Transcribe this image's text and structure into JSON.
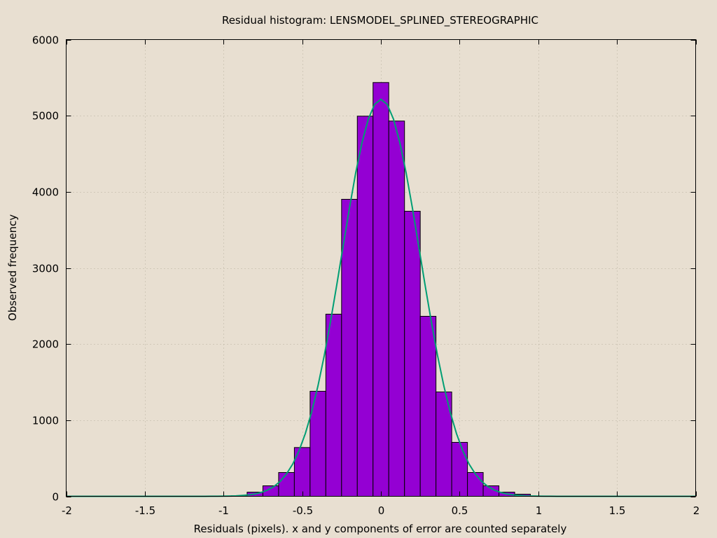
{
  "chart_data": {
    "type": "bar",
    "title": "Residual histogram: LENSMODEL_SPLINED_STEREOGRAPHIC",
    "xlabel": "Residuals (pixels). x and y components of error are counted separately",
    "ylabel": "Observed frequency",
    "xlim": [
      -2,
      2
    ],
    "ylim": [
      0,
      6000
    ],
    "xticks": [
      "-2",
      "-1.5",
      "-1",
      "-0.5",
      "0",
      "0.5",
      "1",
      "1.5",
      "2"
    ],
    "xtick_values": [
      -2,
      -1.5,
      -1,
      -0.5,
      0,
      0.5,
      1,
      1.5,
      2
    ],
    "yticks": [
      "0",
      "1000",
      "2000",
      "3000",
      "4000",
      "5000",
      "6000"
    ],
    "ytick_values": [
      0,
      1000,
      2000,
      3000,
      4000,
      5000,
      6000
    ],
    "grid": true,
    "bin_width": 0.1,
    "x": [
      -0.9,
      -0.8,
      -0.7,
      -0.6,
      -0.5,
      -0.4,
      -0.3,
      -0.2,
      -0.1,
      0.0,
      0.1,
      0.2,
      0.3,
      0.4,
      0.5,
      0.6,
      0.7,
      0.8,
      0.9
    ],
    "values": [
      8,
      55,
      138,
      313,
      641,
      1380,
      2393,
      3902,
      4994,
      5436,
      4930,
      3745,
      2365,
      1371,
      709,
      313,
      138,
      55,
      28
    ],
    "curve": {
      "type": "gaussian",
      "mean": 0.0,
      "sigma": 0.25,
      "peak": 5215
    },
    "colors": {
      "bars": "#9400d3",
      "curve": "#009e73",
      "background": "#e8dfd1"
    }
  }
}
